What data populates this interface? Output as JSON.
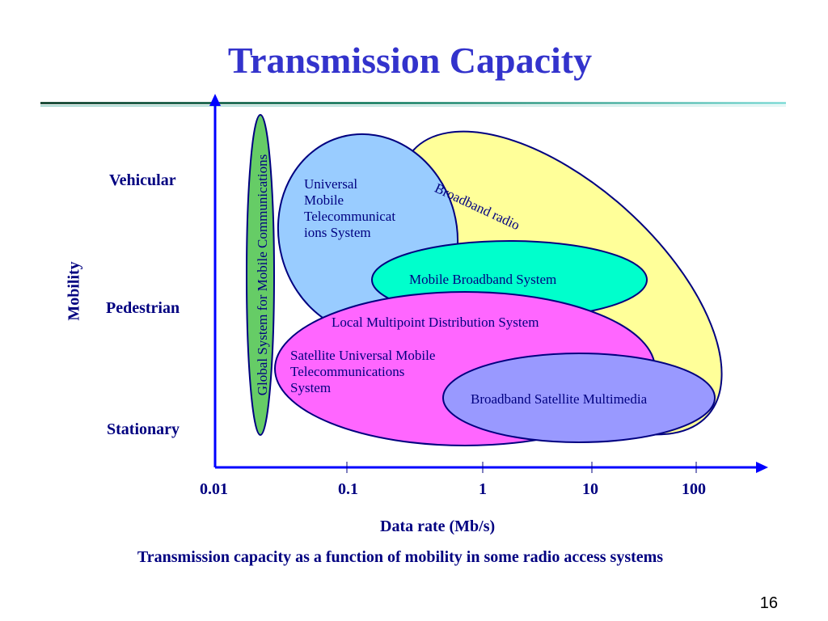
{
  "slide": {
    "title": "Transmission Capacity",
    "caption": "Transmission capacity as a function of mobility in some radio access systems",
    "page_number": "16"
  },
  "diagram": {
    "y_axis": {
      "title": "Mobility",
      "levels": [
        "Vehicular",
        "Pedestrian",
        "Stationary"
      ]
    },
    "x_axis": {
      "title": "Data rate (Mb/s)",
      "ticks": [
        "0.01",
        "0.1",
        "1",
        "10",
        "100"
      ]
    },
    "systems": [
      {
        "id": "gsm",
        "label": "Global System for Mobile Communications",
        "color": "#66cc66"
      },
      {
        "id": "umts",
        "label_lines": [
          "Universal",
          "Mobile",
          "Telecommunicat",
          "ions System"
        ],
        "color": "#99ccff"
      },
      {
        "id": "broadband-radio",
        "label": "Broadband radio",
        "color": "#ffff99"
      },
      {
        "id": "mbs",
        "label": "Mobile Broadband System",
        "color": "#00ffcc"
      },
      {
        "id": "lmds",
        "label": "Local Multipoint Distribution System",
        "color": "#ff66ff"
      },
      {
        "id": "sumts",
        "label_lines": [
          "Satellite Universal Mobile",
          "Telecommunications",
          "System"
        ],
        "color": "#ff66ff"
      },
      {
        "id": "bsm",
        "label": "Broadband Satellite Multimedia",
        "color": "#9999ff"
      }
    ],
    "colors": {
      "outline": "#000080",
      "text": "#000080",
      "axis": "#0000ff",
      "title": "#3333cc"
    }
  }
}
